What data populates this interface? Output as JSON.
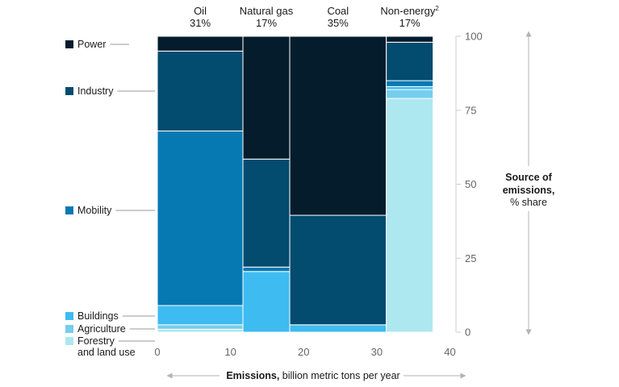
{
  "chart_data": {
    "type": "bar",
    "subtype": "marimekko",
    "title": "",
    "xlabel_bold": "Emissions,",
    "xlabel_rest": " billion metric tons per year",
    "ylabel_bold_lines": [
      "Source of",
      "emissions,"
    ],
    "ylabel_rest": "% share",
    "xlim": [
      0,
      40.5
    ],
    "ylim": [
      0,
      100
    ],
    "x_ticks": [
      "0",
      "10",
      "20",
      "30",
      "40"
    ],
    "x_tick_values": [
      0,
      10,
      20,
      30,
      40
    ],
    "y_ticks": [
      "0",
      "25",
      "50",
      "75",
      "100"
    ],
    "y_tick_values": [
      0,
      25,
      50,
      75,
      100
    ],
    "grid": false,
    "legend_position": "left",
    "segments": [
      {
        "key": "power",
        "label": "Power",
        "color": "#051c2c"
      },
      {
        "key": "industry",
        "label": "Industry",
        "color": "#034b6f"
      },
      {
        "key": "mobility",
        "label": "Mobility",
        "color": "#0679b3"
      },
      {
        "key": "buildings",
        "label": "Buildings",
        "color": "#3ebbf0"
      },
      {
        "key": "agriculture",
        "label": "Agriculture",
        "color": "#75cdf0"
      },
      {
        "key": "forestry",
        "label": "Forestry and land use",
        "label_lines": [
          "Forestry",
          "and land use"
        ],
        "color": "#ade7f0"
      }
    ],
    "columns": [
      {
        "name": "Oil",
        "share": "31%",
        "x_start": 0,
        "x_end": 11.7,
        "values": {
          "forestry": 1,
          "agriculture": 1.5,
          "buildings": 6.5,
          "mobility": 59,
          "industry": 27,
          "power": 5
        }
      },
      {
        "name": "Natural gas",
        "share": "17%",
        "x_start": 11.7,
        "x_end": 18.1,
        "values": {
          "forestry": 0,
          "agriculture": 0,
          "buildings": 20.5,
          "mobility": 1.5,
          "industry": 36.5,
          "power": 41.5
        }
      },
      {
        "name": "Coal",
        "share": "35%",
        "x_start": 18.1,
        "x_end": 31.3,
        "values": {
          "forestry": 0,
          "agriculture": 0,
          "buildings": 2.5,
          "mobility": 0,
          "industry": 37,
          "power": 60.5
        }
      },
      {
        "name": "Non-energy",
        "name_sup": "2",
        "share": "17%",
        "x_start": 31.3,
        "x_end": 37.7,
        "values": {
          "forestry": 79,
          "agriculture": 3,
          "buildings": 1,
          "mobility": 2,
          "industry": 13,
          "power": 2
        }
      }
    ]
  }
}
